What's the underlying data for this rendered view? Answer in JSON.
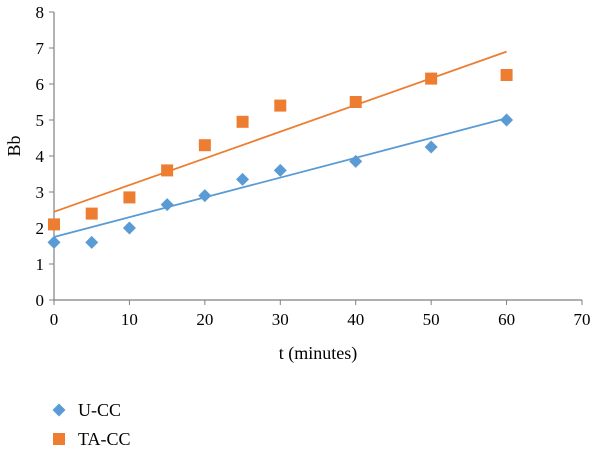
{
  "chart_data": {
    "type": "scatter",
    "xlabel": "t (minutes)",
    "ylabel": "Bb",
    "xlim": [
      0,
      70
    ],
    "ylim": [
      0,
      8
    ],
    "xticks": [
      0,
      10,
      20,
      30,
      40,
      50,
      60,
      70
    ],
    "yticks": [
      0,
      1,
      2,
      3,
      4,
      5,
      6,
      7,
      8
    ],
    "grid": false,
    "legend_position": "bottom-left",
    "series": [
      {
        "name": "U-CC",
        "marker": "diamond",
        "color": "#5B9BD5",
        "x": [
          0,
          5,
          10,
          15,
          20,
          25,
          30,
          40,
          50,
          60
        ],
        "y": [
          1.6,
          1.6,
          2.0,
          2.65,
          2.9,
          3.35,
          3.6,
          3.85,
          4.25,
          5.0
        ],
        "trendline": {
          "type": "linear",
          "x": [
            0,
            60
          ],
          "y": [
            1.75,
            5.05
          ]
        }
      },
      {
        "name": "TA-CC",
        "marker": "square",
        "color": "#ED7D31",
        "x": [
          0,
          5,
          10,
          15,
          20,
          25,
          30,
          40,
          50,
          60
        ],
        "y": [
          2.1,
          2.4,
          2.85,
          3.6,
          4.3,
          4.95,
          5.4,
          5.5,
          6.15,
          6.25
        ],
        "trendline": {
          "type": "linear",
          "x": [
            0,
            60
          ],
          "y": [
            2.45,
            6.9
          ]
        }
      }
    ]
  }
}
